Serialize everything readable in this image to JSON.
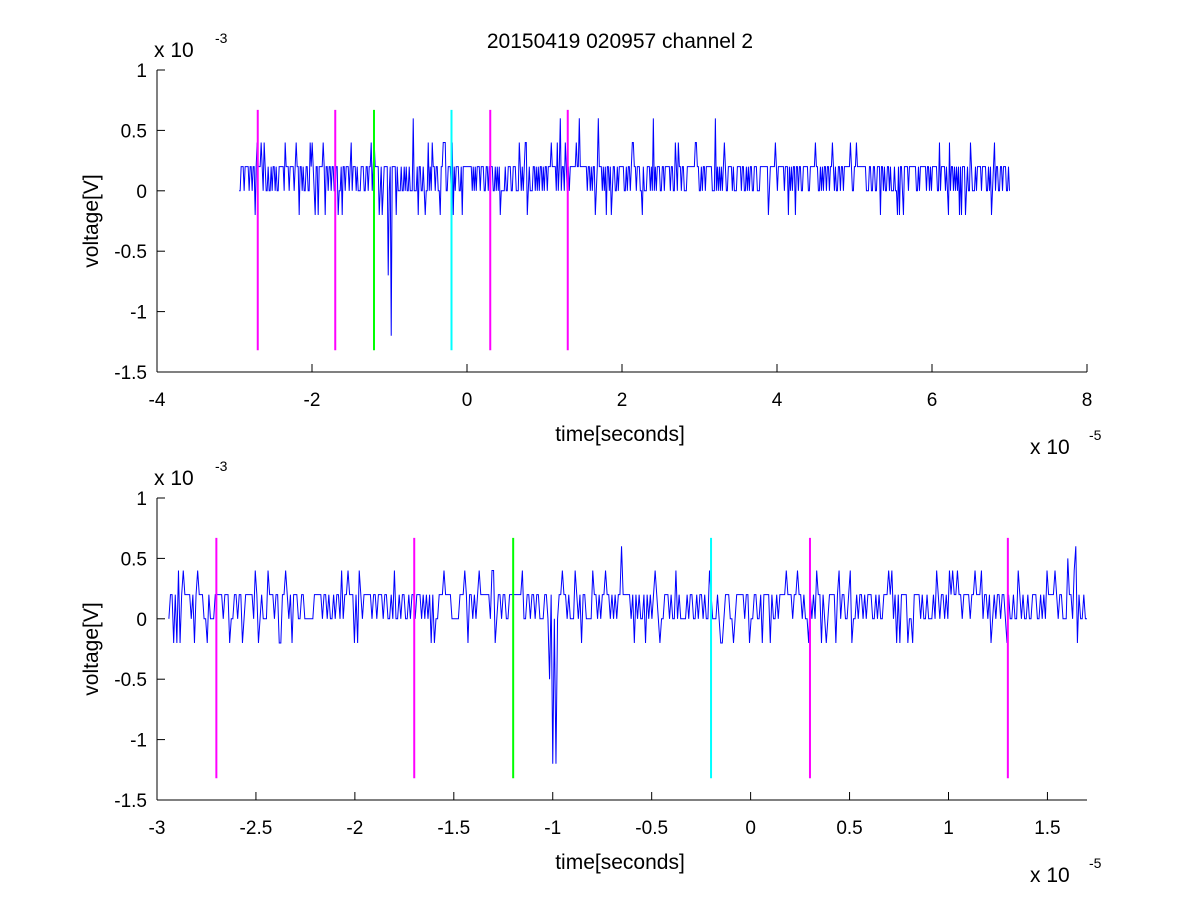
{
  "figure": {
    "title": "20150419 020957 channel 2"
  },
  "chart_data": [
    {
      "type": "line",
      "title": "20150419 020957 channel 2",
      "xlabel": "time[seconds]",
      "ylabel": "voltage[V]",
      "x_multiplier": "x 10",
      "x_exponent": "-5",
      "y_multiplier": "x 10",
      "y_exponent": "-3",
      "xlim": [
        -4,
        8
      ],
      "ylim": [
        -1.5,
        1
      ],
      "xticks": [
        -4,
        -2,
        0,
        2,
        4,
        6,
        8
      ],
      "xtick_labels": [
        "-4",
        "-2",
        "0",
        "2",
        "4",
        "6",
        "8"
      ],
      "yticks": [
        -1.5,
        -1,
        -0.5,
        0,
        0.5,
        1
      ],
      "ytick_labels": [
        "-1.5",
        "-1",
        "-0.5",
        "0",
        "0.5",
        "1"
      ],
      "grid": false,
      "series": [
        {
          "color": "#0000ff",
          "x_range": [
            -2.94,
            7.0
          ],
          "levels": [
            -0.2,
            0,
            0.2,
            0.4
          ],
          "spikes": [
            {
              "x": -2.35,
              "y": 0.4
            },
            {
              "x": -2.2,
              "y": 0.4
            },
            {
              "x": -2.0,
              "y": 0.4
            },
            {
              "x": -1.85,
              "y": 0.4
            },
            {
              "x": -1.5,
              "y": 0.4
            },
            {
              "x": -1.2,
              "y": 0.4
            },
            {
              "x": -0.7,
              "y": 0.6
            },
            {
              "x": -0.5,
              "y": 0.4
            },
            {
              "x": -0.3,
              "y": 0.4
            },
            {
              "x": 1.2,
              "y": 0.6
            },
            {
              "x": 1.45,
              "y": 0.6
            },
            {
              "x": 1.7,
              "y": 0.6
            },
            {
              "x": 2.4,
              "y": 0.6
            },
            {
              "x": 3.2,
              "y": 0.6
            },
            {
              "x": 4.5,
              "y": 0.4
            },
            {
              "x": 6.1,
              "y": 0.4
            },
            {
              "x": 6.5,
              "y": 0.4
            },
            {
              "x": 6.8,
              "y": 0.4
            },
            {
              "x": -1.02,
              "y": -0.7
            },
            {
              "x": -0.98,
              "y": -1.2
            },
            {
              "x": 1.8,
              "y": -0.2
            },
            {
              "x": 4.15,
              "y": -0.2
            },
            {
              "x": 5.55,
              "y": -0.2
            }
          ]
        }
      ],
      "markers": [
        {
          "x": -2.7,
          "color": "#ff00ff"
        },
        {
          "x": -1.7,
          "color": "#ff00ff"
        },
        {
          "x": -1.2,
          "color": "#00ff00"
        },
        {
          "x": -0.2,
          "color": "#00ffff"
        },
        {
          "x": 0.3,
          "color": "#ff00ff"
        },
        {
          "x": 1.3,
          "color": "#ff00ff"
        }
      ],
      "marker_range": [
        -1.32,
        0.67
      ]
    },
    {
      "type": "line",
      "xlabel": "time[seconds]",
      "ylabel": "voltage[V]",
      "x_multiplier": "x 10",
      "x_exponent": "-5",
      "y_multiplier": "x 10",
      "y_exponent": "-3",
      "xlim": [
        -3.0,
        1.7
      ],
      "ylim": [
        -1.5,
        1
      ],
      "xticks": [
        -3,
        -2.5,
        -2,
        -1.5,
        -1,
        -0.5,
        0,
        0.5,
        1,
        1.5
      ],
      "xtick_labels": [
        "-3",
        "-2.5",
        "-2",
        "-1.5",
        "-1",
        "-0.5",
        "0",
        "0.5",
        "1",
        "1.5"
      ],
      "yticks": [
        -1.5,
        -1,
        -0.5,
        0,
        0.5,
        1
      ],
      "ytick_labels": [
        "-1.5",
        "-1",
        "-0.5",
        "0",
        "0.5",
        "1"
      ],
      "grid": false,
      "series": [
        {
          "color": "#0000ff",
          "x_range": [
            -2.94,
            1.7
          ],
          "levels": [
            -0.2,
            0,
            0.2,
            0.4
          ],
          "spikes": [
            {
              "x": -2.35,
              "y": 0.4
            },
            {
              "x": -1.98,
              "y": 0.4
            },
            {
              "x": -1.8,
              "y": 0.4
            },
            {
              "x": -1.15,
              "y": 0.4
            },
            {
              "x": -0.95,
              "y": 0.4
            },
            {
              "x": -0.8,
              "y": 0.4
            },
            {
              "x": -0.65,
              "y": 0.6
            },
            {
              "x": 0.33,
              "y": 0.4
            },
            {
              "x": 0.5,
              "y": 0.4
            },
            {
              "x": 0.7,
              "y": 0.4
            },
            {
              "x": 1.35,
              "y": 0.4
            },
            {
              "x": 1.5,
              "y": 0.4
            },
            {
              "x": 1.6,
              "y": 0.5
            },
            {
              "x": 1.64,
              "y": 0.6
            },
            {
              "x": -1.02,
              "y": -0.5
            },
            {
              "x": -1.0,
              "y": -1.2
            },
            {
              "x": -0.98,
              "y": -1.2
            },
            {
              "x": -2.9,
              "y": -0.2
            },
            {
              "x": -2.75,
              "y": -0.2
            },
            {
              "x": -2.0,
              "y": -0.2
            },
            {
              "x": -1.6,
              "y": -0.2
            },
            {
              "x": -0.15,
              "y": -0.2
            }
          ]
        }
      ],
      "markers": [
        {
          "x": -2.7,
          "color": "#ff00ff"
        },
        {
          "x": -1.7,
          "color": "#ff00ff"
        },
        {
          "x": -1.2,
          "color": "#00ff00"
        },
        {
          "x": -0.2,
          "color": "#00ffff"
        },
        {
          "x": 0.3,
          "color": "#ff00ff"
        },
        {
          "x": 1.3,
          "color": "#ff00ff"
        }
      ],
      "marker_range": [
        -1.32,
        0.67
      ]
    }
  ]
}
